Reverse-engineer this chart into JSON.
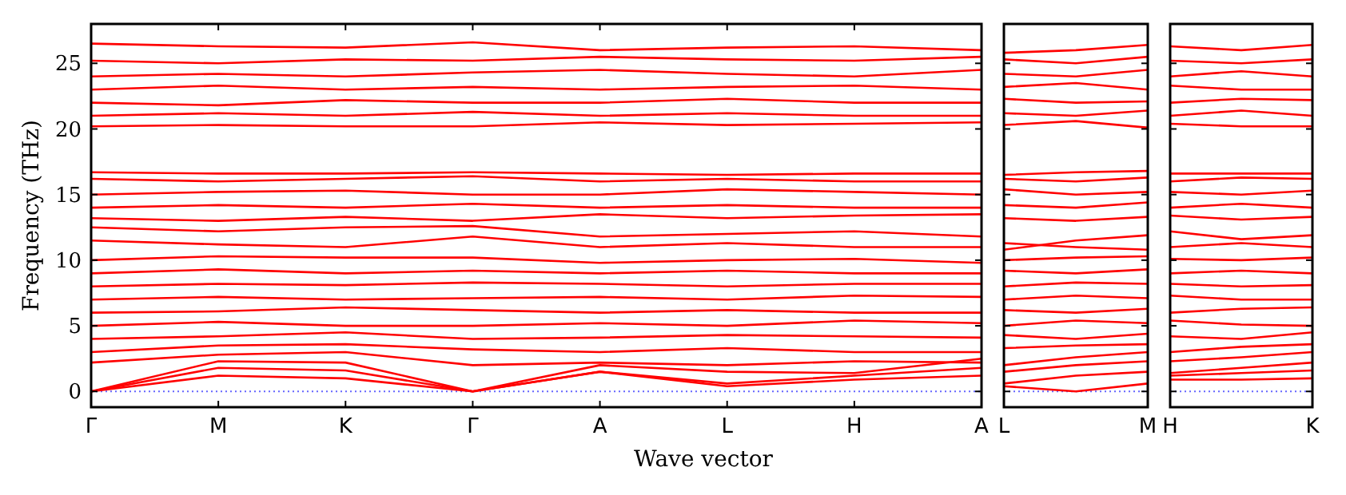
{
  "chart_data": [
    {
      "type": "line",
      "xlabel": "Wave vector",
      "ylabel": "Frequency (THz)",
      "ylim": [
        -1.2,
        28
      ],
      "categories": [
        "Γ",
        "M",
        "K",
        "Γ",
        "A",
        "L",
        "H",
        "A"
      ],
      "yticks": [
        0,
        5,
        10,
        15,
        20,
        25
      ],
      "ref_lines": [
        {
          "axis": "y",
          "value": 0,
          "color": "#6666ff",
          "line_style": "dotted"
        }
      ],
      "series": [
        {
          "color": "#ff0000",
          "values": [
            0,
            1.2,
            1.0,
            0,
            1.5,
            0.4,
            0.9,
            1.2
          ]
        },
        {
          "color": "#ff0000",
          "values": [
            0,
            1.8,
            1.6,
            0,
            1.5,
            0.6,
            1.2,
            1.8
          ]
        },
        {
          "color": "#ff0000",
          "values": [
            0,
            2.3,
            2.2,
            0,
            2.0,
            1.5,
            1.4,
            2.5
          ]
        },
        {
          "color": "#ff0000",
          "values": [
            2.2,
            2.8,
            3.0,
            2.0,
            2.2,
            2.0,
            2.3,
            2.2
          ]
        },
        {
          "color": "#ff0000",
          "values": [
            3.0,
            3.5,
            3.6,
            3.2,
            3.0,
            3.3,
            3.0,
            3.0
          ]
        },
        {
          "color": "#ff0000",
          "values": [
            4.0,
            4.2,
            4.5,
            4.0,
            4.1,
            4.3,
            4.2,
            4.1
          ]
        },
        {
          "color": "#ff0000",
          "values": [
            5.0,
            5.3,
            5.0,
            5.0,
            5.2,
            5.0,
            5.4,
            5.2
          ]
        },
        {
          "color": "#ff0000",
          "values": [
            6.0,
            6.1,
            6.4,
            6.2,
            6.0,
            6.2,
            6.0,
            6.0
          ]
        },
        {
          "color": "#ff0000",
          "values": [
            7.0,
            7.2,
            7.0,
            7.1,
            7.2,
            7.0,
            7.3,
            7.2
          ]
        },
        {
          "color": "#ff0000",
          "values": [
            8.0,
            8.2,
            8.1,
            8.3,
            8.2,
            8.0,
            8.2,
            8.2
          ]
        },
        {
          "color": "#ff0000",
          "values": [
            9.0,
            9.3,
            9.0,
            9.2,
            9.0,
            9.2,
            9.0,
            9.0
          ]
        },
        {
          "color": "#ff0000",
          "values": [
            10.0,
            10.3,
            10.2,
            10.2,
            9.8,
            10.0,
            10.1,
            9.8
          ]
        },
        {
          "color": "#ff0000",
          "values": [
            11.5,
            11.2,
            11.0,
            11.8,
            11.0,
            11.3,
            11.0,
            11.0
          ]
        },
        {
          "color": "#ff0000",
          "values": [
            12.5,
            12.2,
            12.5,
            12.6,
            11.8,
            12.0,
            12.2,
            11.8
          ]
        },
        {
          "color": "#ff0000",
          "values": [
            13.2,
            13.0,
            13.3,
            13.0,
            13.5,
            13.2,
            13.4,
            13.5
          ]
        },
        {
          "color": "#ff0000",
          "values": [
            14.0,
            14.2,
            14.0,
            14.3,
            14.0,
            14.2,
            14.0,
            14.0
          ]
        },
        {
          "color": "#ff0000",
          "values": [
            15.0,
            15.2,
            15.3,
            15.0,
            15.0,
            15.4,
            15.2,
            15.0
          ]
        },
        {
          "color": "#ff0000",
          "values": [
            16.2,
            16.0,
            16.2,
            16.4,
            16.0,
            16.2,
            16.0,
            16.0
          ]
        },
        {
          "color": "#ff0000",
          "values": [
            16.7,
            16.6,
            16.6,
            16.7,
            16.6,
            16.5,
            16.6,
            16.6
          ]
        },
        {
          "color": "#ff0000",
          "values": [
            20.2,
            20.3,
            20.2,
            20.2,
            20.5,
            20.3,
            20.4,
            20.5
          ]
        },
        {
          "color": "#ff0000",
          "values": [
            21.0,
            21.2,
            21.0,
            21.3,
            21.0,
            21.2,
            21.0,
            21.0
          ]
        },
        {
          "color": "#ff0000",
          "values": [
            22.0,
            21.8,
            22.2,
            22.0,
            22.0,
            22.3,
            22.0,
            22.0
          ]
        },
        {
          "color": "#ff0000",
          "values": [
            23.0,
            23.3,
            23.0,
            23.2,
            23.0,
            23.2,
            23.3,
            23.0
          ]
        },
        {
          "color": "#ff0000",
          "values": [
            24.0,
            24.2,
            24.0,
            24.3,
            24.5,
            24.2,
            24.0,
            24.5
          ]
        },
        {
          "color": "#ff0000",
          "values": [
            25.2,
            25.0,
            25.3,
            25.2,
            25.5,
            25.3,
            25.2,
            25.5
          ]
        },
        {
          "color": "#ff0000",
          "values": [
            26.5,
            26.3,
            26.2,
            26.6,
            26.0,
            26.2,
            26.3,
            26.0
          ]
        }
      ]
    },
    {
      "type": "line",
      "ylim": [
        -1.2,
        28
      ],
      "tick_labels": "x",
      "categories": [
        "L",
        null,
        "M"
      ],
      "yticks": [
        0,
        5,
        10,
        15,
        20,
        25
      ],
      "ref_lines": [
        {
          "axis": "y",
          "value": 0,
          "color": "#6666ff",
          "line_style": "dotted"
        }
      ],
      "series": [
        {
          "color": "#ff0000",
          "values": [
            0.4,
            0,
            0.6
          ]
        },
        {
          "color": "#ff0000",
          "values": [
            0.6,
            1.2,
            1.5
          ]
        },
        {
          "color": "#ff0000",
          "values": [
            1.5,
            2.0,
            2.3
          ]
        },
        {
          "color": "#ff0000",
          "values": [
            2.0,
            2.6,
            3.0
          ]
        },
        {
          "color": "#ff0000",
          "values": [
            3.3,
            3.5,
            3.6
          ]
        },
        {
          "color": "#ff0000",
          "values": [
            4.3,
            4.0,
            4.4
          ]
        },
        {
          "color": "#ff0000",
          "values": [
            5.0,
            5.4,
            5.2
          ]
        },
        {
          "color": "#ff0000",
          "values": [
            6.2,
            6.0,
            6.3
          ]
        },
        {
          "color": "#ff0000",
          "values": [
            7.0,
            7.3,
            7.1
          ]
        },
        {
          "color": "#ff0000",
          "values": [
            8.0,
            8.3,
            8.2
          ]
        },
        {
          "color": "#ff0000",
          "values": [
            9.2,
            9.0,
            9.3
          ]
        },
        {
          "color": "#ff0000",
          "values": [
            10.0,
            10.2,
            10.3
          ]
        },
        {
          "color": "#ff0000",
          "values": [
            11.3,
            11.0,
            10.8
          ]
        },
        {
          "color": "#ff0000",
          "values": [
            10.8,
            11.5,
            11.9
          ]
        },
        {
          "color": "#ff0000",
          "values": [
            13.2,
            13.0,
            13.3
          ]
        },
        {
          "color": "#ff0000",
          "values": [
            14.2,
            14.0,
            14.4
          ]
        },
        {
          "color": "#ff0000",
          "values": [
            15.4,
            15.0,
            15.2
          ]
        },
        {
          "color": "#ff0000",
          "values": [
            16.2,
            16.0,
            16.3
          ]
        },
        {
          "color": "#ff0000",
          "values": [
            16.5,
            16.7,
            16.8
          ]
        },
        {
          "color": "#ff0000",
          "values": [
            20.3,
            20.6,
            20.1
          ]
        },
        {
          "color": "#ff0000",
          "values": [
            21.2,
            21.0,
            21.4
          ]
        },
        {
          "color": "#ff0000",
          "values": [
            22.3,
            22.0,
            22.1
          ]
        },
        {
          "color": "#ff0000",
          "values": [
            23.2,
            23.5,
            23.0
          ]
        },
        {
          "color": "#ff0000",
          "values": [
            24.2,
            24.0,
            24.5
          ]
        },
        {
          "color": "#ff0000",
          "values": [
            25.3,
            25.0,
            25.5
          ]
        },
        {
          "color": "#ff0000",
          "values": [
            25.8,
            26.0,
            26.4
          ]
        }
      ]
    },
    {
      "type": "line",
      "ylim": [
        -1.2,
        28
      ],
      "tick_labels": "x",
      "categories": [
        "H",
        null,
        "K"
      ],
      "yticks": [
        0,
        5,
        10,
        15,
        20,
        25
      ],
      "ref_lines": [
        {
          "axis": "y",
          "value": 0,
          "color": "#6666ff",
          "line_style": "dotted"
        }
      ],
      "series": [
        {
          "color": "#ff0000",
          "values": [
            0.9,
            0.9,
            1.0
          ]
        },
        {
          "color": "#ff0000",
          "values": [
            1.2,
            1.4,
            1.6
          ]
        },
        {
          "color": "#ff0000",
          "values": [
            1.4,
            1.8,
            2.2
          ]
        },
        {
          "color": "#ff0000",
          "values": [
            2.3,
            2.6,
            3.0
          ]
        },
        {
          "color": "#ff0000",
          "values": [
            3.0,
            3.4,
            3.6
          ]
        },
        {
          "color": "#ff0000",
          "values": [
            4.2,
            4.0,
            4.5
          ]
        },
        {
          "color": "#ff0000",
          "values": [
            5.4,
            5.1,
            5.0
          ]
        },
        {
          "color": "#ff0000",
          "values": [
            6.0,
            6.3,
            6.4
          ]
        },
        {
          "color": "#ff0000",
          "values": [
            7.3,
            7.0,
            7.0
          ]
        },
        {
          "color": "#ff0000",
          "values": [
            8.2,
            8.0,
            8.1
          ]
        },
        {
          "color": "#ff0000",
          "values": [
            9.0,
            9.2,
            9.0
          ]
        },
        {
          "color": "#ff0000",
          "values": [
            10.1,
            10.0,
            10.2
          ]
        },
        {
          "color": "#ff0000",
          "values": [
            11.0,
            11.3,
            11.0
          ]
        },
        {
          "color": "#ff0000",
          "values": [
            12.2,
            11.6,
            11.9
          ]
        },
        {
          "color": "#ff0000",
          "values": [
            13.4,
            13.1,
            13.3
          ]
        },
        {
          "color": "#ff0000",
          "values": [
            14.0,
            14.3,
            14.0
          ]
        },
        {
          "color": "#ff0000",
          "values": [
            15.2,
            15.0,
            15.3
          ]
        },
        {
          "color": "#ff0000",
          "values": [
            16.0,
            16.3,
            16.2
          ]
        },
        {
          "color": "#ff0000",
          "values": [
            16.6,
            16.6,
            16.6
          ]
        },
        {
          "color": "#ff0000",
          "values": [
            20.4,
            20.2,
            20.2
          ]
        },
        {
          "color": "#ff0000",
          "values": [
            21.0,
            21.4,
            21.0
          ]
        },
        {
          "color": "#ff0000",
          "values": [
            22.0,
            22.3,
            22.2
          ]
        },
        {
          "color": "#ff0000",
          "values": [
            23.3,
            23.0,
            23.0
          ]
        },
        {
          "color": "#ff0000",
          "values": [
            24.0,
            24.4,
            24.0
          ]
        },
        {
          "color": "#ff0000",
          "values": [
            25.2,
            25.0,
            25.3
          ]
        },
        {
          "color": "#ff0000",
          "values": [
            26.3,
            26.0,
            26.4
          ]
        }
      ]
    }
  ]
}
